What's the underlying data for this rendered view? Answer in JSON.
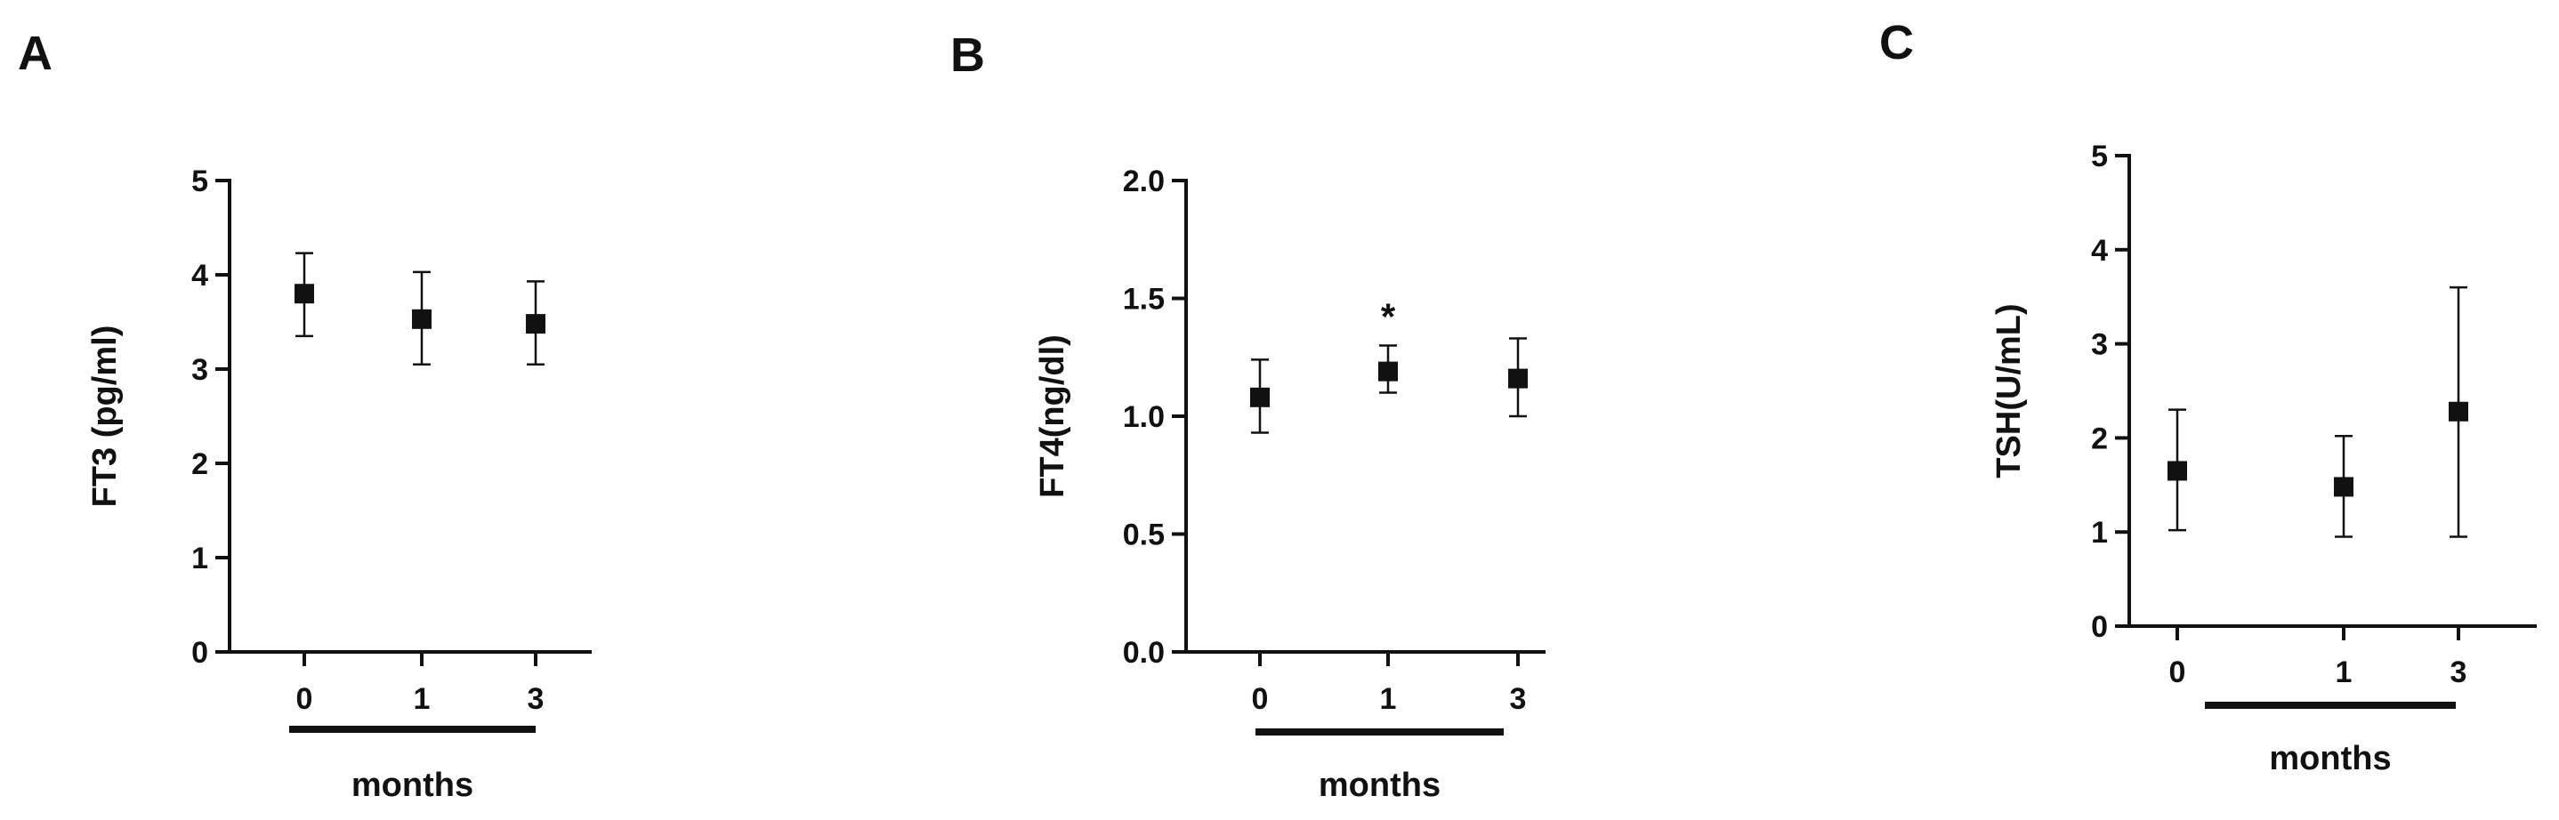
{
  "chart_data": [
    {
      "panel": "A",
      "type": "scatter",
      "categories": [
        "0",
        "1",
        "3"
      ],
      "xlabel": "months",
      "ylabel": "FT3 (pg/ml)",
      "ylim": [
        0,
        5
      ],
      "yticks": [
        "0",
        "1",
        "2",
        "3",
        "4",
        "5"
      ],
      "series": [
        {
          "values": [
            3.8,
            3.53,
            3.48
          ],
          "err_low": [
            3.35,
            3.05,
            3.05
          ],
          "err_high": [
            4.23,
            4.03,
            3.93
          ]
        }
      ],
      "annotations": []
    },
    {
      "panel": "B",
      "type": "scatter",
      "categories": [
        "0",
        "1",
        "3"
      ],
      "xlabel": "months",
      "ylabel": "FT4(ng/dl)",
      "ylim": [
        0,
        2
      ],
      "yticks": [
        "0.0",
        "0.5",
        "1.0",
        "1.5",
        "2.0"
      ],
      "series": [
        {
          "values": [
            1.08,
            1.19,
            1.16
          ],
          "err_low": [
            0.93,
            1.1,
            1.0
          ],
          "err_high": [
            1.24,
            1.3,
            1.33
          ]
        }
      ],
      "annotations": [
        {
          "category_index": 1,
          "text": "*"
        }
      ]
    },
    {
      "panel": "C",
      "type": "scatter",
      "categories": [
        "0",
        "1",
        "3"
      ],
      "xlabel": "months",
      "ylabel": "TSH(U/mL)",
      "ylim": [
        0,
        5
      ],
      "yticks": [
        "0",
        "1",
        "2",
        "3",
        "4",
        "5"
      ],
      "series": [
        {
          "values": [
            1.65,
            1.48,
            2.28
          ],
          "err_low": [
            1.02,
            0.95,
            0.95
          ],
          "err_high": [
            2.3,
            2.02,
            3.6
          ]
        }
      ],
      "annotations": []
    }
  ],
  "colors": {
    "ink": "#111111",
    "background": "#ffffff"
  },
  "marker_shape": "filled-square"
}
